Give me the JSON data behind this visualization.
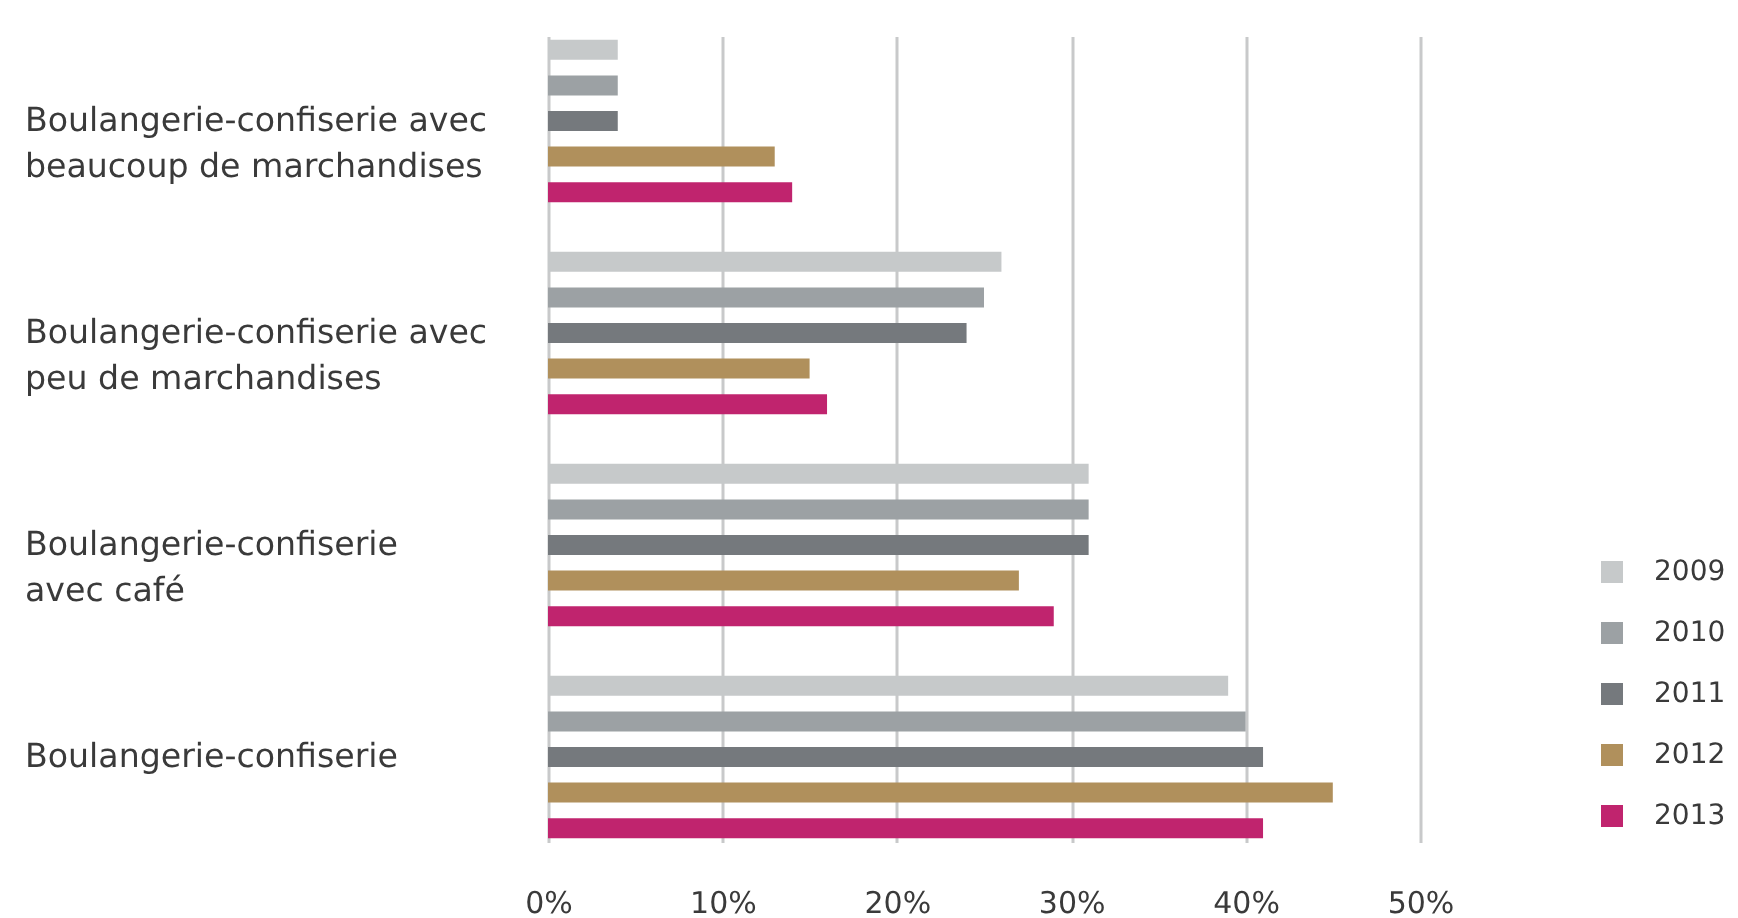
{
  "chart_data": {
    "type": "bar",
    "orientation": "horizontal",
    "categories": [
      "Boulangerie-confiserie avec\nbeaucoup de marchandises",
      "Boulangerie-confiserie avec\npeu de marchandises",
      "Boulangerie-confiserie\navec café",
      "Boulangerie-confiserie"
    ],
    "series": [
      {
        "name": "2009",
        "color": "#c6c9ca",
        "values": [
          4,
          26,
          31,
          39
        ]
      },
      {
        "name": "2010",
        "color": "#9ca1a4",
        "values": [
          4,
          25,
          31,
          40
        ]
      },
      {
        "name": "2011",
        "color": "#75797d",
        "values": [
          4,
          24,
          31,
          41
        ]
      },
      {
        "name": "2012",
        "color": "#b0905c",
        "values": [
          13,
          15,
          27,
          45
        ]
      },
      {
        "name": "2013",
        "color": "#c0246e",
        "values": [
          14,
          16,
          29,
          41
        ]
      }
    ],
    "xlim": [
      0,
      50
    ],
    "xticks": [
      {
        "value": 0,
        "label": "0%"
      },
      {
        "value": 10,
        "label": "10%"
      },
      {
        "value": 20,
        "label": "20%"
      },
      {
        "value": 30,
        "label": "30%"
      },
      {
        "value": 40,
        "label": "40%"
      },
      {
        "value": 50,
        "label": "50%"
      }
    ],
    "grid": "x",
    "legend": "bottom right"
  }
}
